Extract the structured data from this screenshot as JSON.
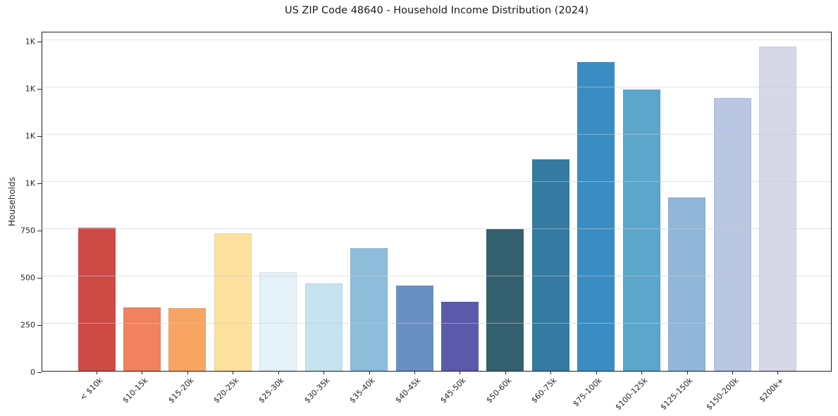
{
  "chart_data": {
    "type": "bar",
    "title": "US ZIP Code 48640 - Household Income Distribution (2024)",
    "xlabel": "",
    "ylabel": "Households",
    "categories": [
      "< $10k",
      "$10-15k",
      "$15-20k",
      "$20-25k",
      "$25-30k",
      "$30-35k",
      "$35-40k",
      "$40-45k",
      "$45-50k",
      "$50-60k",
      "$60-75k",
      "$75-100k",
      "$100-125k",
      "$125-150k",
      "$150-200k",
      "$200k+"
    ],
    "values": [
      758,
      337,
      332,
      730,
      524,
      462,
      648,
      451,
      365,
      749,
      1121,
      1634,
      1491,
      918,
      1446,
      1719
    ],
    "bar_colors": [
      "#ce4a45",
      "#f0825f",
      "#f8a463",
      "#fce19e",
      "#e4f1f6",
      "#c6e3ef",
      "#8ebddc",
      "#6a90c3",
      "#5b59a9",
      "#345f6f",
      "#347aa1",
      "#3a8dc3",
      "#5ba6ca",
      "#91b6d9",
      "#b9c7e2",
      "#d7d8e7"
    ],
    "ylim": [
      0,
      1800
    ],
    "yticks": [
      {
        "value": 0,
        "label": "0"
      },
      {
        "value": 250,
        "label": "250"
      },
      {
        "value": 500,
        "label": "500"
      },
      {
        "value": 750,
        "label": "750"
      },
      {
        "value": 1000,
        "label": "1K"
      },
      {
        "value": 1250,
        "label": "1K"
      },
      {
        "value": 1500,
        "label": "1K"
      },
      {
        "value": 1750,
        "label": "1K"
      }
    ],
    "grid": "horizontal-only",
    "legend": "none"
  }
}
